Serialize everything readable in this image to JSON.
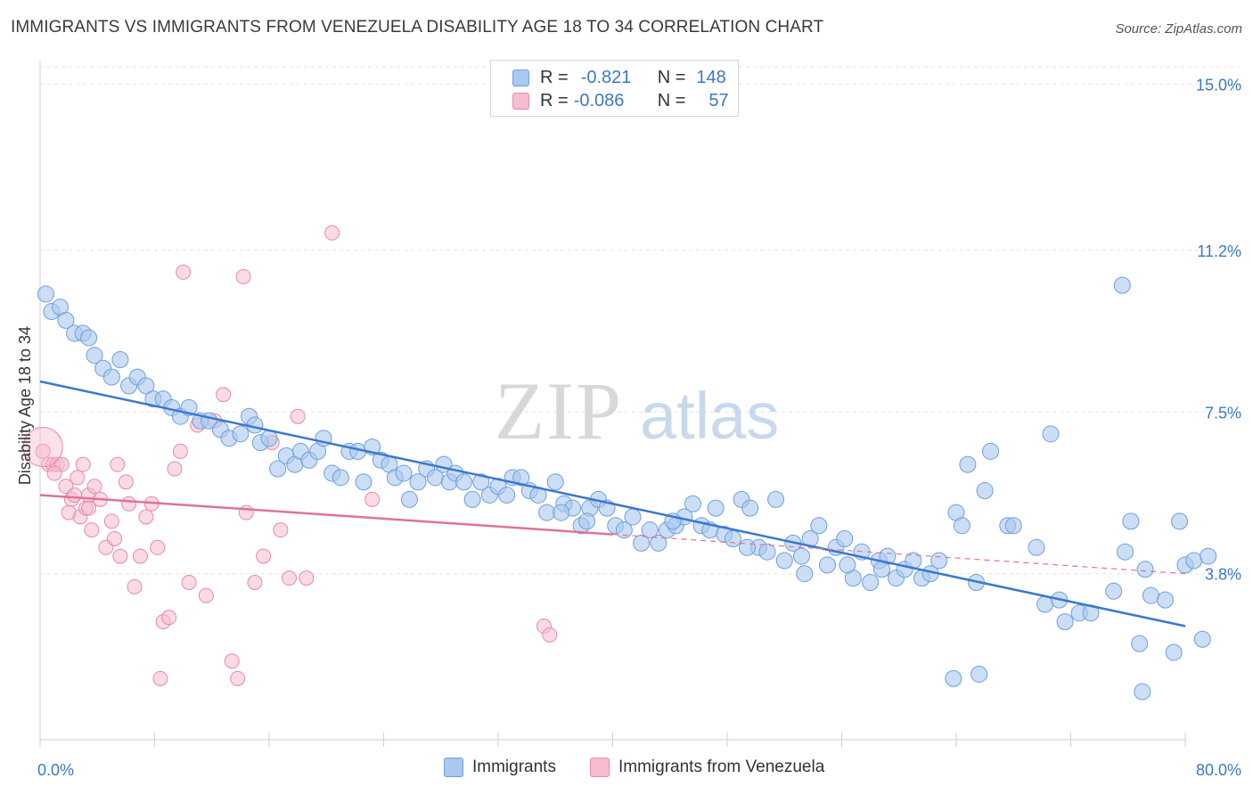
{
  "header": {
    "title": "IMMIGRANTS VS IMMIGRANTS FROM VENEZUELA DISABILITY AGE 18 TO 34 CORRELATION CHART",
    "source": "Source: ZipAtlas.com"
  },
  "watermark": {
    "zip": "ZIP",
    "atlas": "atlas"
  },
  "colors": {
    "immigrants_fill": "#aac8f0",
    "immigrants_stroke": "#6f9fdc",
    "immigrants_line": "#3a78d0",
    "venezuela_fill": "#f6bccf",
    "venezuela_stroke": "#e88aa8",
    "venezuela_line": "#e0729a",
    "axis_text_blue": "#3b78c9",
    "grid": "#e3e3e3"
  },
  "legend": {
    "rows": [
      {
        "r_label": "R =",
        "r_value": "-0.821",
        "n_label": "N =",
        "n_value": "148"
      },
      {
        "r_label": "R =",
        "r_value": "-0.086",
        "n_label": "N =",
        "n_value": "57"
      }
    ]
  },
  "bottom_legend": {
    "immigrants": "Immigrants",
    "venezuela": "Immigrants from Venezuela"
  },
  "chart_data": {
    "type": "scatter",
    "title": "IMMIGRANTS VS IMMIGRANTS FROM VENEZUELA DISABILITY AGE 18 TO 34 CORRELATION CHART",
    "xlabel": "",
    "ylabel": "Disability Age 18 to 34",
    "xlim": [
      0,
      80
    ],
    "ylim": [
      0,
      15.4
    ],
    "x_tick_labels": [
      "0.0%",
      "80.0%"
    ],
    "y_ticks": [
      3.8,
      7.5,
      11.2,
      15.0
    ],
    "y_tick_labels": [
      "3.8%",
      "7.5%",
      "11.2%",
      "15.0%"
    ],
    "grid": true,
    "legend_position": "top-center",
    "series": [
      {
        "name": "Immigrants",
        "trend": {
          "x": [
            0,
            80
          ],
          "y": [
            8.2,
            2.6
          ],
          "style": "solid"
        },
        "points": [
          [
            0.4,
            10.2
          ],
          [
            0.8,
            9.8
          ],
          [
            1.4,
            9.9
          ],
          [
            1.8,
            9.6
          ],
          [
            2.4,
            9.3
          ],
          [
            3.0,
            9.3
          ],
          [
            3.4,
            9.2
          ],
          [
            3.8,
            8.8
          ],
          [
            4.4,
            8.5
          ],
          [
            5.0,
            8.3
          ],
          [
            5.6,
            8.7
          ],
          [
            6.2,
            8.1
          ],
          [
            6.8,
            8.3
          ],
          [
            7.4,
            8.1
          ],
          [
            7.9,
            7.8
          ],
          [
            8.6,
            7.8
          ],
          [
            9.2,
            7.6
          ],
          [
            9.8,
            7.4
          ],
          [
            10.4,
            7.6
          ],
          [
            11.2,
            7.3
          ],
          [
            11.8,
            7.3
          ],
          [
            12.6,
            7.1
          ],
          [
            13.2,
            6.9
          ],
          [
            14.0,
            7.0
          ],
          [
            14.6,
            7.4
          ],
          [
            15.0,
            7.2
          ],
          [
            15.4,
            6.8
          ],
          [
            16.0,
            6.9
          ],
          [
            16.6,
            6.2
          ],
          [
            17.2,
            6.5
          ],
          [
            17.8,
            6.3
          ],
          [
            18.2,
            6.6
          ],
          [
            18.8,
            6.4
          ],
          [
            19.4,
            6.6
          ],
          [
            19.8,
            6.9
          ],
          [
            20.4,
            6.1
          ],
          [
            21.0,
            6.0
          ],
          [
            21.6,
            6.6
          ],
          [
            22.2,
            6.6
          ],
          [
            22.6,
            5.9
          ],
          [
            23.2,
            6.7
          ],
          [
            23.8,
            6.4
          ],
          [
            24.4,
            6.3
          ],
          [
            24.8,
            6.0
          ],
          [
            25.4,
            6.1
          ],
          [
            25.8,
            5.5
          ],
          [
            26.4,
            5.9
          ],
          [
            27.0,
            6.2
          ],
          [
            27.6,
            6.0
          ],
          [
            28.2,
            6.3
          ],
          [
            28.6,
            5.9
          ],
          [
            29.0,
            6.1
          ],
          [
            29.6,
            5.9
          ],
          [
            30.2,
            5.5
          ],
          [
            30.8,
            5.9
          ],
          [
            31.4,
            5.6
          ],
          [
            32.0,
            5.8
          ],
          [
            32.6,
            5.6
          ],
          [
            33.0,
            6.0
          ],
          [
            33.6,
            6.0
          ],
          [
            34.2,
            5.7
          ],
          [
            34.8,
            5.6
          ],
          [
            35.4,
            5.2
          ],
          [
            36.0,
            5.9
          ],
          [
            36.6,
            5.4
          ],
          [
            37.2,
            5.3
          ],
          [
            37.8,
            4.9
          ],
          [
            38.4,
            5.3
          ],
          [
            39.0,
            5.5
          ],
          [
            39.6,
            5.3
          ],
          [
            40.2,
            4.9
          ],
          [
            40.8,
            4.8
          ],
          [
            41.4,
            5.1
          ],
          [
            42.0,
            4.5
          ],
          [
            42.6,
            4.8
          ],
          [
            43.2,
            4.5
          ],
          [
            43.8,
            4.8
          ],
          [
            44.4,
            4.9
          ],
          [
            45.0,
            5.1
          ],
          [
            45.6,
            5.4
          ],
          [
            46.2,
            4.9
          ],
          [
            46.8,
            4.8
          ],
          [
            47.2,
            5.3
          ],
          [
            47.8,
            4.7
          ],
          [
            48.4,
            4.6
          ],
          [
            49.0,
            5.5
          ],
          [
            49.6,
            5.3
          ],
          [
            50.2,
            4.4
          ],
          [
            50.8,
            4.3
          ],
          [
            51.4,
            5.5
          ],
          [
            52.0,
            4.1
          ],
          [
            52.6,
            4.5
          ],
          [
            53.2,
            4.2
          ],
          [
            53.8,
            4.6
          ],
          [
            54.4,
            4.9
          ],
          [
            55.0,
            4.0
          ],
          [
            55.6,
            4.4
          ],
          [
            56.2,
            4.6
          ],
          [
            56.8,
            3.7
          ],
          [
            57.4,
            4.3
          ],
          [
            58.0,
            3.6
          ],
          [
            58.6,
            4.1
          ],
          [
            59.2,
            4.2
          ],
          [
            59.8,
            3.7
          ],
          [
            60.4,
            3.9
          ],
          [
            61.0,
            4.1
          ],
          [
            61.6,
            3.7
          ],
          [
            62.2,
            3.8
          ],
          [
            62.8,
            4.1
          ],
          [
            64.0,
            5.2
          ],
          [
            64.4,
            4.9
          ],
          [
            64.8,
            6.3
          ],
          [
            65.4,
            3.6
          ],
          [
            66.0,
            5.7
          ],
          [
            66.4,
            6.6
          ],
          [
            67.6,
            4.9
          ],
          [
            68.0,
            4.9
          ],
          [
            69.6,
            4.4
          ],
          [
            70.2,
            3.1
          ],
          [
            70.6,
            7.0
          ],
          [
            71.2,
            3.2
          ],
          [
            71.6,
            2.7
          ],
          [
            72.6,
            2.9
          ],
          [
            73.4,
            2.9
          ],
          [
            75.0,
            3.4
          ],
          [
            75.8,
            4.3
          ],
          [
            76.2,
            5.0
          ],
          [
            76.8,
            2.2
          ],
          [
            77.2,
            3.9
          ],
          [
            77.6,
            3.3
          ],
          [
            78.6,
            3.2
          ],
          [
            79.2,
            2.0
          ],
          [
            80.0,
            4.0
          ],
          [
            80.6,
            4.1
          ],
          [
            81.2,
            2.3
          ],
          [
            81.6,
            4.2
          ],
          [
            63.8,
            1.4
          ],
          [
            65.6,
            1.5
          ],
          [
            77.0,
            1.1
          ],
          [
            75.6,
            10.4
          ],
          [
            79.6,
            5.0
          ],
          [
            58.8,
            3.9
          ],
          [
            56.4,
            4.0
          ],
          [
            53.4,
            3.8
          ],
          [
            49.4,
            4.4
          ],
          [
            44.2,
            5.0
          ],
          [
            38.2,
            5.0
          ],
          [
            36.4,
            5.2
          ]
        ]
      },
      {
        "name": "Immigrants from Venezuela",
        "trend": {
          "x": [
            0,
            40
          ],
          "y": [
            5.6,
            4.7
          ],
          "style": "solid",
          "extended": {
            "x": [
              40,
              80
            ],
            "y": [
              4.7,
              3.8
            ],
            "style": "dashed"
          }
        },
        "points": [
          [
            0.2,
            6.6
          ],
          [
            0.6,
            6.3
          ],
          [
            0.9,
            6.3
          ],
          [
            1.2,
            6.3
          ],
          [
            1.5,
            6.3
          ],
          [
            1.8,
            5.8
          ],
          [
            2.2,
            5.5
          ],
          [
            2.4,
            5.6
          ],
          [
            2.6,
            6.0
          ],
          [
            2.8,
            5.1
          ],
          [
            3.0,
            6.3
          ],
          [
            3.2,
            5.3
          ],
          [
            3.4,
            5.6
          ],
          [
            3.6,
            4.8
          ],
          [
            3.8,
            5.8
          ],
          [
            4.2,
            5.5
          ],
          [
            4.6,
            4.4
          ],
          [
            5.0,
            5.0
          ],
          [
            5.4,
            6.3
          ],
          [
            5.6,
            4.2
          ],
          [
            6.0,
            5.9
          ],
          [
            6.2,
            5.4
          ],
          [
            6.6,
            3.5
          ],
          [
            7.0,
            4.2
          ],
          [
            7.4,
            5.1
          ],
          [
            7.8,
            5.4
          ],
          [
            8.2,
            4.4
          ],
          [
            8.6,
            2.7
          ],
          [
            9.0,
            2.8
          ],
          [
            9.4,
            6.2
          ],
          [
            9.8,
            6.6
          ],
          [
            10.4,
            3.6
          ],
          [
            11.0,
            7.2
          ],
          [
            11.6,
            3.3
          ],
          [
            12.2,
            7.3
          ],
          [
            12.8,
            7.9
          ],
          [
            13.4,
            1.8
          ],
          [
            13.8,
            1.4
          ],
          [
            14.4,
            5.2
          ],
          [
            15.0,
            3.6
          ],
          [
            15.6,
            4.2
          ],
          [
            16.2,
            6.8
          ],
          [
            16.8,
            4.8
          ],
          [
            17.4,
            3.7
          ],
          [
            18.0,
            7.4
          ],
          [
            18.6,
            3.7
          ],
          [
            10.0,
            10.7
          ],
          [
            14.2,
            10.6
          ],
          [
            20.4,
            11.6
          ],
          [
            23.2,
            5.5
          ],
          [
            35.2,
            2.6
          ],
          [
            35.6,
            2.4
          ],
          [
            8.4,
            1.4
          ],
          [
            5.2,
            4.6
          ],
          [
            3.4,
            5.3
          ],
          [
            1.0,
            6.1
          ],
          [
            2.0,
            5.2
          ]
        ]
      }
    ]
  }
}
